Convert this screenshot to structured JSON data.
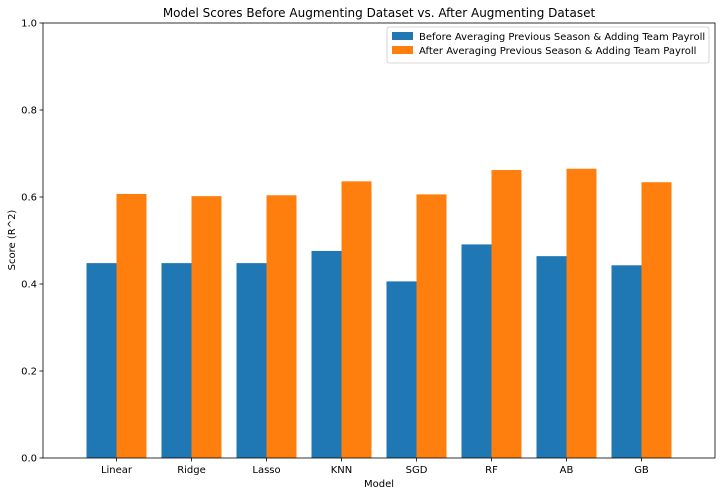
{
  "chart_data": {
    "type": "bar",
    "title": "Model Scores Before Augmenting Dataset vs. After Augmenting Dataset",
    "xlabel": "Model",
    "ylabel": "Score (R^2)",
    "ylim": [
      0,
      1.0
    ],
    "yticks": [
      "0.0",
      "0.2",
      "0.4",
      "0.6",
      "0.8",
      "1.0"
    ],
    "grid": false,
    "legend_position": "top-right",
    "categories": [
      "Linear",
      "Ridge",
      "Lasso",
      "KNN",
      "SGD",
      "RF",
      "AB",
      "GB"
    ],
    "series": [
      {
        "name": "Before Averaging Previous Season & Adding Team Payroll",
        "color": "#1f77b4",
        "values": [
          0.448,
          0.448,
          0.448,
          0.476,
          0.406,
          0.491,
          0.464,
          0.443
        ]
      },
      {
        "name": "After Averaging Previous Season & Adding Team Payroll",
        "color": "#ff7f0e",
        "values": [
          0.607,
          0.602,
          0.604,
          0.636,
          0.606,
          0.662,
          0.665,
          0.634
        ]
      }
    ]
  }
}
